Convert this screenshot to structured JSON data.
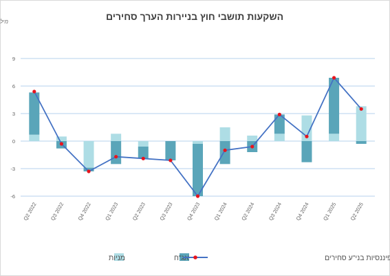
{
  "chart_data": {
    "type": "bar",
    "title": "השקעות תושבי חוץ בניירות הערך סחירים",
    "unit_label": "מיליארדי דולר",
    "categories": [
      "Q2 2022",
      "Q3 2022",
      "Q4 2022",
      "Q1 2023",
      "Q2 2023",
      "Q3 2023",
      "Q4 2023",
      "Q1 2024",
      "Q2 2024",
      "Q3 2024",
      "Q4 2024",
      "Q1 2025",
      "Q2 2025"
    ],
    "ylim": [
      -6,
      9
    ],
    "yticks": [
      -6,
      -3,
      0,
      3,
      6,
      9
    ],
    "grid": true,
    "legend_position": "bottom",
    "stacked": true,
    "series": [
      {
        "name": "מניות",
        "type": "bar",
        "color": "#aedde5",
        "values": [
          0.7,
          0.5,
          -2.9,
          0.8,
          -0.6,
          0.0,
          -0.3,
          1.5,
          0.6,
          0.8,
          2.8,
          0.8,
          3.8
        ]
      },
      {
        "name": "אג\"ח",
        "type": "bar",
        "color": "#5aa5b9",
        "values": [
          4.6,
          -0.8,
          -0.4,
          -2.5,
          -1.3,
          -2.1,
          -5.7,
          -2.5,
          -1.2,
          2.1,
          -2.3,
          6.1,
          -0.3
        ]
      },
      {
        "name": "סך הכל השקעות פיננסיות בני\"ע סחירים",
        "type": "line",
        "color": "#4472c4",
        "marker_color": "#e8141c",
        "values": [
          5.4,
          -0.3,
          -3.3,
          -1.7,
          -1.9,
          -2.1,
          -6.0,
          -1.0,
          -0.6,
          2.9,
          0.5,
          6.9,
          3.5
        ]
      }
    ]
  }
}
